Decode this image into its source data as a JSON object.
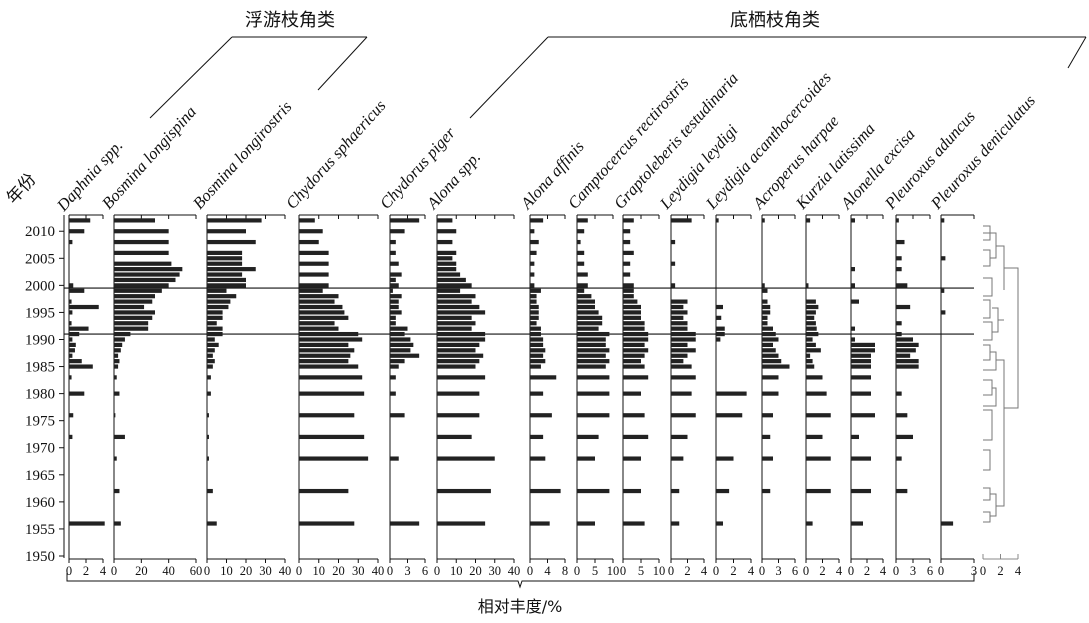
{
  "chart_data": {
    "type": "bar",
    "orientation": "horizontal",
    "group_labels": [
      {
        "text": "浮游枝角类"
      },
      {
        "text": "底栖枝角类"
      }
    ],
    "y_axis": {
      "label": "年份",
      "ylim": [
        1950,
        2013
      ],
      "ticks": [
        1950,
        1955,
        1960,
        1965,
        1970,
        1975,
        1980,
        1985,
        1990,
        1995,
        2000,
        2005,
        2010
      ],
      "reference_lines": [
        1991,
        1999.5
      ]
    },
    "x_axis_label": "相对丰度/%",
    "cluster_ticks": [
      0,
      2,
      4
    ],
    "panels": [
      {
        "name": "Daphnia spp.",
        "ticks": [
          0,
          2,
          4
        ],
        "max": 4,
        "values": {
          "2012": 2.5,
          "2010": 1.8,
          "2008": 0.4,
          "2000": 0.5,
          "1999": 1.8,
          "1997": 0.3,
          "1996": 3.5,
          "1995": 0.4,
          "1993": 0.3,
          "1992": 2.3,
          "1991": 1.2,
          "1990": 0.4,
          "1989": 0.8,
          "1988": 0.7,
          "1987": 0.4,
          "1986": 1.5,
          "1985": 2.8,
          "1983": 0.3,
          "1980": 1.8,
          "1976": 0.5,
          "1972": 0.4,
          "1956": 4.2
        }
      },
      {
        "name": "Bosmina longispina",
        "ticks": [
          0,
          20,
          40,
          60
        ],
        "max": 60,
        "values": {
          "2012": 30,
          "2010": 40,
          "2008": 40,
          "2006": 40,
          "2004": 42,
          "2003": 50,
          "2002": 48,
          "2001": 45,
          "2000": 40,
          "1999": 35,
          "1998": 30,
          "1997": 28,
          "1996": 22,
          "1995": 30,
          "1994": 28,
          "1993": 25,
          "1992": 25,
          "1991": 12,
          "1990": 8,
          "1989": 6,
          "1988": 5,
          "1987": 3,
          "1986": 4,
          "1985": 3,
          "1983": 2,
          "1980": 4,
          "1976": 1,
          "1972": 8,
          "1968": 2,
          "1962": 4,
          "1956": 5
        }
      },
      {
        "name": "Bosmina longirostris",
        "ticks": [
          0,
          10,
          20,
          30,
          40
        ],
        "max": 40,
        "values": {
          "2012": 28,
          "2010": 20,
          "2008": 25,
          "2006": 18,
          "2005": 18,
          "2004": 18,
          "2003": 25,
          "2002": 18,
          "2001": 20,
          "2000": 20,
          "1999": 10,
          "1998": 15,
          "1997": 12,
          "1996": 11,
          "1995": 8,
          "1994": 8,
          "1993": 5,
          "1992": 8,
          "1991": 8,
          "1990": 4,
          "1989": 6,
          "1988": 4,
          "1987": 3,
          "1986": 4,
          "1985": 3,
          "1983": 2,
          "1980": 2,
          "1976": 1,
          "1972": 1,
          "1968": 1,
          "1962": 3,
          "1956": 5
        }
      },
      {
        "name": "Chydorus sphaericus",
        "ticks": [
          0,
          10,
          20,
          30,
          40
        ],
        "max": 40,
        "values": {
          "2012": 8,
          "2010": 12,
          "2008": 10,
          "2006": 15,
          "2004": 15,
          "2002": 15,
          "2000": 15,
          "1999": 12,
          "1998": 20,
          "1997": 18,
          "1996": 22,
          "1995": 23,
          "1994": 25,
          "1993": 18,
          "1992": 20,
          "1991": 30,
          "1990": 32,
          "1989": 25,
          "1988": 28,
          "1987": 26,
          "1986": 25,
          "1985": 30,
          "1983": 32,
          "1980": 33,
          "1976": 28,
          "1972": 33,
          "1968": 35,
          "1962": 25,
          "1956": 28
        }
      },
      {
        "name": "Chydorus piger",
        "ticks": [
          0,
          3,
          6
        ],
        "max": 6,
        "values": {
          "2012": 5,
          "2010": 2.5,
          "2008": 1,
          "2006": 1,
          "2004": 1.5,
          "2002": 2,
          "2001": 1,
          "2000": 1.5,
          "1999": 0.5,
          "1998": 2,
          "1997": 1.5,
          "1996": 1.5,
          "1995": 2,
          "1994": 1,
          "1993": 1,
          "1992": 3,
          "1991": 2.5,
          "1990": 3.5,
          "1989": 4,
          "1988": 3.5,
          "1987": 5,
          "1986": 2.5,
          "1985": 1.5,
          "1983": 1,
          "1980": 1,
          "1976": 2.5,
          "1968": 1.5,
          "1956": 5
        }
      },
      {
        "name": "Alona spp.",
        "ticks": [
          0,
          10,
          20,
          30,
          40
        ],
        "max": 40,
        "values": {
          "2012": 8,
          "2010": 10,
          "2008": 8,
          "2006": 10,
          "2005": 8,
          "2004": 10,
          "2003": 10,
          "2002": 12,
          "2001": 15,
          "2000": 18,
          "1999": 12,
          "1998": 20,
          "1997": 18,
          "1996": 22,
          "1995": 25,
          "1994": 18,
          "1993": 20,
          "1992": 18,
          "1991": 25,
          "1990": 25,
          "1989": 22,
          "1988": 20,
          "1987": 24,
          "1986": 22,
          "1985": 20,
          "1983": 25,
          "1980": 22,
          "1976": 22,
          "1972": 18,
          "1968": 30,
          "1962": 28,
          "1956": 25
        }
      },
      {
        "name": "Alona affinis",
        "ticks": [
          0,
          4,
          8
        ],
        "max": 8,
        "values": {
          "2012": 3,
          "2010": 1,
          "2008": 2,
          "2006": 1.5,
          "2004": 1,
          "2002": 1,
          "2000": 1,
          "1999": 2.5,
          "1998": 1.5,
          "1997": 1.5,
          "1996": 2,
          "1995": 2,
          "1994": 2,
          "1993": 1.5,
          "1992": 2.5,
          "1991": 2.5,
          "1990": 3,
          "1989": 3,
          "1988": 3.5,
          "1987": 3,
          "1986": 3.5,
          "1985": 2.5,
          "1983": 6,
          "1980": 3,
          "1976": 5,
          "1972": 3,
          "1968": 3.5,
          "1962": 7,
          "1956": 4.5
        }
      },
      {
        "name": "Camptocercus rectirostris",
        "ticks": [
          0,
          5,
          10
        ],
        "max": 10,
        "values": {
          "2012": 3,
          "2010": 2,
          "2008": 1,
          "2006": 2,
          "2004": 2,
          "2002": 3,
          "2000": 3,
          "1999": 2,
          "1998": 4,
          "1997": 5,
          "1996": 5,
          "1995": 6,
          "1994": 7,
          "1993": 7,
          "1992": 6,
          "1991": 9,
          "1990": 8,
          "1989": 8,
          "1988": 9,
          "1987": 8,
          "1986": 9,
          "1985": 8,
          "1983": 9,
          "1980": 9,
          "1976": 9,
          "1972": 6,
          "1968": 5,
          "1962": 9,
          "1956": 5
        }
      },
      {
        "name": "Graptoleberis testudinaria",
        "ticks": [
          0,
          5,
          10
        ],
        "max": 10,
        "values": {
          "2012": 3,
          "2010": 2,
          "2008": 2,
          "2006": 3,
          "2004": 2,
          "2002": 2,
          "2000": 3,
          "1999": 3,
          "1998": 3,
          "1997": 4,
          "1996": 5,
          "1995": 5,
          "1994": 5,
          "1993": 6,
          "1992": 6,
          "1991": 7,
          "1990": 7,
          "1989": 6,
          "1988": 7,
          "1987": 6,
          "1986": 5,
          "1985": 6,
          "1983": 7,
          "1980": 5,
          "1976": 6,
          "1972": 7,
          "1968": 5,
          "1962": 5,
          "1956": 6
        }
      },
      {
        "name": "Leydigia leydigi",
        "ticks": [
          0,
          2,
          4
        ],
        "max": 4,
        "values": {
          "2012": 2.5,
          "2008": 0.5,
          "2004": 0.5,
          "2000": 0.5,
          "1997": 2,
          "1996": 1.5,
          "1995": 2,
          "1994": 1.5,
          "1993": 2,
          "1992": 2,
          "1991": 3,
          "1990": 3,
          "1989": 2,
          "1988": 3,
          "1987": 2,
          "1986": 1.5,
          "1985": 2.5,
          "1983": 3,
          "1980": 2.5,
          "1976": 3,
          "1972": 2,
          "1968": 1.5,
          "1962": 1,
          "1956": 1
        }
      },
      {
        "name": "Leydigia acanthocercoides",
        "ticks": [
          0,
          2,
          4
        ],
        "max": 4,
        "values": {
          "2012": 0.3,
          "1996": 0.8,
          "1994": 0.6,
          "1992": 1,
          "1991": 1,
          "1990": 0.5,
          "1980": 3.5,
          "1976": 3,
          "1968": 2,
          "1962": 1.5,
          "1956": 0.8
        }
      },
      {
        "name": "Acroperus harpae",
        "ticks": [
          0,
          3,
          6
        ],
        "max": 6,
        "values": {
          "2012": 0.5,
          "2000": 0.5,
          "1999": 1,
          "1997": 1,
          "1996": 1.5,
          "1995": 1.5,
          "1994": 1,
          "1993": 1,
          "1992": 2,
          "1991": 2.5,
          "1990": 3,
          "1989": 2,
          "1988": 2.5,
          "1987": 3,
          "1986": 3.5,
          "1985": 5,
          "1983": 3,
          "1980": 3,
          "1976": 2,
          "1972": 1.5,
          "1968": 2,
          "1962": 1.5
        }
      },
      {
        "name": "Kurzia latissima",
        "ticks": [
          0,
          2,
          4
        ],
        "max": 4,
        "values": {
          "2012": 0.5,
          "2000": 0.3,
          "1997": 1.2,
          "1996": 1.5,
          "1995": 1.2,
          "1994": 1,
          "1993": 1.2,
          "1992": 1.3,
          "1991": 1.5,
          "1990": 0.8,
          "1989": 1.2,
          "1988": 1.8,
          "1987": 0.5,
          "1986": 0.8,
          "1985": 1,
          "1983": 2,
          "1980": 2.5,
          "1976": 3,
          "1972": 2,
          "1968": 3,
          "1962": 3,
          "1956": 0.8
        }
      },
      {
        "name": "Alonella excisa",
        "ticks": [
          0,
          2,
          4
        ],
        "max": 4,
        "values": {
          "2012": 0.5,
          "2003": 0.5,
          "2000": 0.5,
          "1997": 1,
          "1992": 0.5,
          "1990": 0.5,
          "1989": 3,
          "1988": 3,
          "1987": 2.5,
          "1986": 2.5,
          "1985": 2.5,
          "1983": 2.5,
          "1980": 2.5,
          "1976": 3,
          "1972": 1,
          "1968": 2.5,
          "1962": 2.5,
          "1956": 1.5
        }
      },
      {
        "name": "Pleuroxus aduncus",
        "ticks": [
          0,
          3,
          6
        ],
        "max": 6,
        "values": {
          "2012": 0.5,
          "2008": 1.5,
          "2005": 1,
          "2003": 1,
          "2000": 2,
          "1996": 2.5,
          "1993": 1,
          "1991": 1,
          "1990": 3,
          "1989": 4,
          "1988": 3.5,
          "1987": 2.5,
          "1986": 4,
          "1985": 4,
          "1980": 1,
          "1976": 2,
          "1972": 3,
          "1968": 1,
          "1962": 2
        }
      },
      {
        "name": "Pleuroxus deniculatus",
        "ticks": [
          0,
          3
        ],
        "max": 3,
        "values": {
          "2012": 0.3,
          "2005": 0.4,
          "1999": 0.3,
          "1995": 0.4,
          "1956": 1.1
        }
      }
    ]
  }
}
